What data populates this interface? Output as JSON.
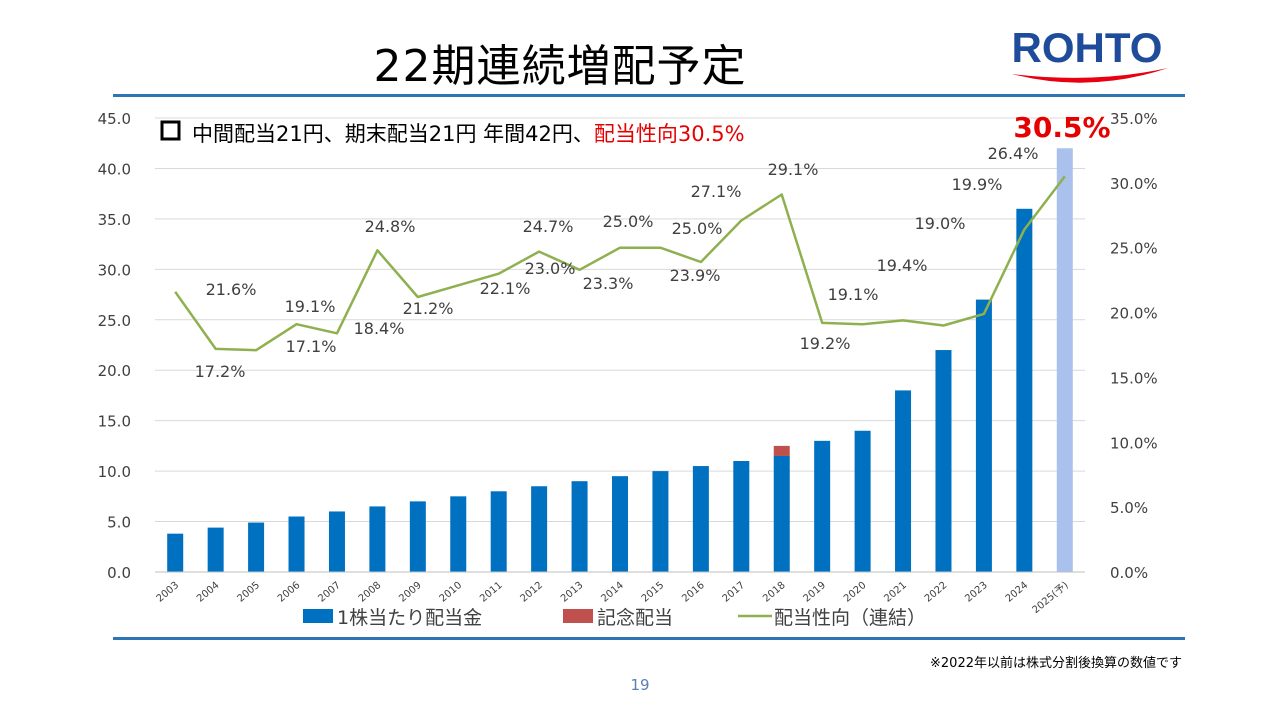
{
  "slide": {
    "title": "22期連続増配予定",
    "note": "※2022年以前は株式分割後換算の数値です",
    "page_number": "19"
  },
  "logo": {
    "text": "ROHTO",
    "color": "#1e4c9a",
    "swoosh_color": "#e60012"
  },
  "colors": {
    "dividend_bar": "#0070c0",
    "forecast_bar": "#a9c1ec",
    "commemorative_bar": "#c0504d",
    "ratio_line": "#8fb04f",
    "rule": "#2e75b6",
    "accent_red": "#e60000"
  },
  "chart_data": {
    "type": "bar",
    "categories": [
      "2003",
      "2004",
      "2005",
      "2006",
      "2007",
      "2008",
      "2009",
      "2010",
      "2011",
      "2012",
      "2013",
      "2014",
      "2015",
      "2016",
      "2017",
      "2018",
      "2019",
      "2020",
      "2021",
      "2022",
      "2023",
      "2024",
      "2025(予)"
    ],
    "series": [
      {
        "name": "1株当たり配当金",
        "type": "bar",
        "axis": "left",
        "values": [
          3.8,
          4.4,
          4.9,
          5.5,
          6.0,
          6.5,
          7.0,
          7.5,
          8.0,
          8.5,
          9.0,
          9.5,
          10.0,
          10.5,
          11.0,
          11.5,
          13.0,
          14.0,
          18.0,
          22.0,
          27.0,
          36.0,
          42.0
        ]
      },
      {
        "name": "記念配当",
        "type": "bar",
        "stacked": true,
        "axis": "left",
        "values": [
          0,
          0,
          0,
          0,
          0,
          0,
          0,
          0,
          0,
          0,
          0,
          0,
          0,
          0,
          0,
          1.0,
          0,
          0,
          0,
          0,
          0,
          0,
          0
        ]
      },
      {
        "name": "配当性向（連結）",
        "type": "line",
        "axis": "right",
        "values": [
          21.6,
          17.2,
          17.1,
          19.1,
          18.4,
          24.8,
          21.2,
          22.1,
          23.0,
          24.7,
          23.3,
          25.0,
          25.0,
          23.9,
          27.1,
          29.1,
          19.2,
          19.1,
          19.4,
          19.0,
          19.9,
          26.4,
          30.5
        ]
      }
    ],
    "ratio_labels": [
      "21.6%",
      "17.2%",
      "17.1%",
      "19.1%",
      "18.4%",
      "24.8%",
      "21.2%",
      "22.1%",
      "23.0%",
      "24.7%",
      "23.3%",
      "25.0%",
      "25.0%",
      "23.9%",
      "27.1%",
      "29.1%",
      "19.2%",
      "19.1%",
      "19.4%",
      "19.0%",
      "19.9%",
      "26.4%",
      "30.5%"
    ],
    "yleft": {
      "lim": [
        0,
        45
      ],
      "ticks": [
        "0.0",
        "5.0",
        "10.0",
        "15.0",
        "20.0",
        "25.0",
        "30.0",
        "35.0",
        "40.0",
        "45.0"
      ]
    },
    "yright": {
      "lim": [
        0,
        35
      ],
      "ticks": [
        "0.0%",
        "5.0%",
        "10.0%",
        "15.0%",
        "20.0%",
        "25.0%",
        "30.0%",
        "35.0%"
      ]
    },
    "annotation": {
      "prefix": "中間配当21円、期末配当21円 年間42円、",
      "highlight": "配当性向30.5%"
    },
    "grid": "horizontal",
    "legend_position": "bottom"
  }
}
